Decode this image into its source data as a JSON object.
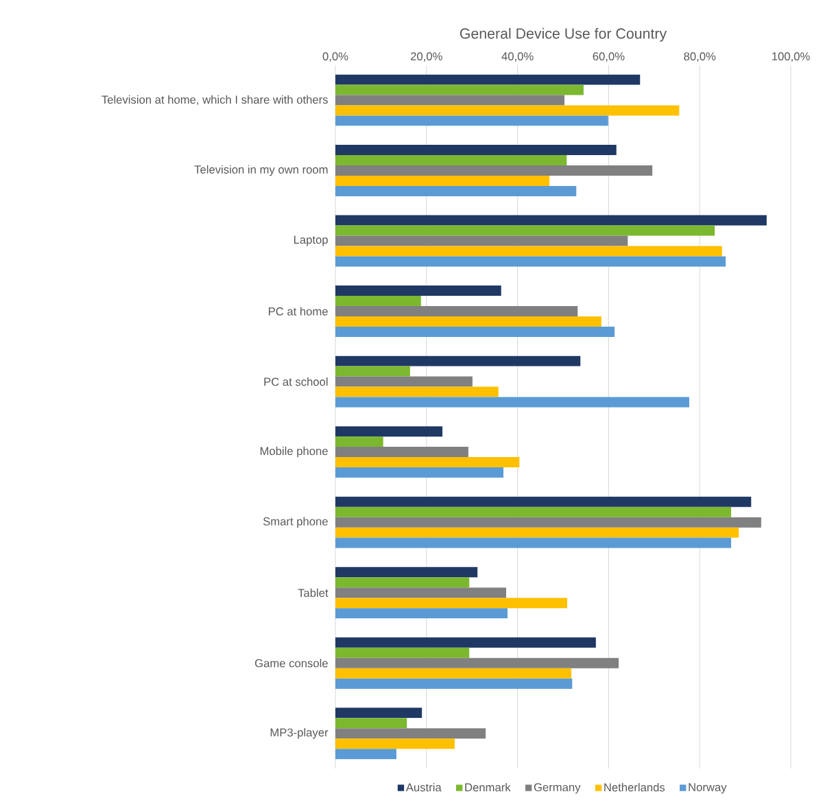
{
  "chart_data": {
    "type": "bar",
    "orientation": "horizontal",
    "title": "General Device Use for Country",
    "categories": [
      "Television at home, which I share with others",
      "Television in my own room",
      "Laptop",
      "PC at home",
      "PC at school",
      "Mobile phone",
      "Smart phone",
      "Tablet",
      "Game console",
      "MP3-player"
    ],
    "series": [
      {
        "name": "Austria",
        "color": "#1f3864",
        "values": [
          66.9,
          61.7,
          94.7,
          36.4,
          53.8,
          23.5,
          91.3,
          31.2,
          57.2,
          19.0
        ]
      },
      {
        "name": "Denmark",
        "color": "#7cb82f",
        "values": [
          54.5,
          50.8,
          83.3,
          18.8,
          16.4,
          10.5,
          86.9,
          29.4,
          29.4,
          15.7
        ]
      },
      {
        "name": "Germany",
        "color": "#808080",
        "values": [
          50.3,
          69.6,
          64.2,
          53.2,
          30.1,
          29.2,
          93.5,
          37.5,
          62.2,
          33.0
        ]
      },
      {
        "name": "Netherlands",
        "color": "#ffc000",
        "values": [
          75.5,
          47.0,
          84.9,
          58.4,
          35.8,
          40.4,
          88.6,
          50.9,
          51.8,
          26.2
        ]
      },
      {
        "name": "Norway",
        "color": "#5b9bd5",
        "values": [
          59.9,
          52.9,
          85.7,
          61.3,
          77.7,
          36.9,
          86.9,
          37.8,
          52.0,
          13.4
        ]
      }
    ],
    "xlim": [
      0,
      100
    ],
    "xticks": [
      {
        "value": 0,
        "label": "0,0%"
      },
      {
        "value": 20,
        "label": "20,0%"
      },
      {
        "value": 40,
        "label": "40,0%"
      },
      {
        "value": 60,
        "label": "60,0%"
      },
      {
        "value": 80,
        "label": "80,0%"
      },
      {
        "value": 100,
        "label": "100,0%"
      }
    ],
    "grid": "x",
    "legend": "bottom"
  }
}
